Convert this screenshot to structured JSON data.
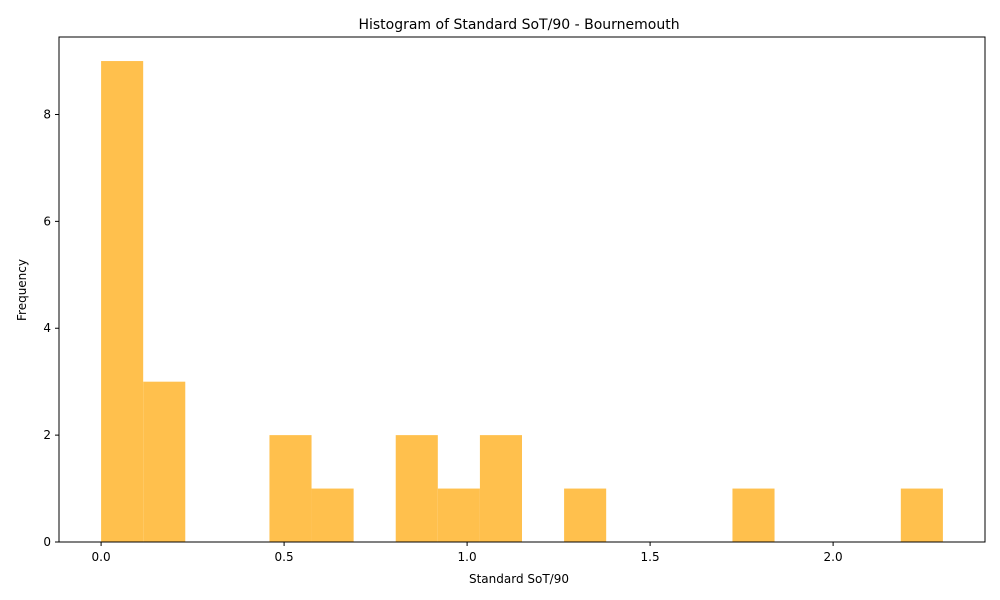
{
  "chart_data": {
    "type": "bar",
    "title": "Histogram of Standard SoT/90 - Bournemouth",
    "xlabel": "Standard SoT/90",
    "ylabel": "Frequency",
    "bar_color": "#ffc04d",
    "xlim": [
      -0.115,
      2.415
    ],
    "ylim": [
      0,
      9.45
    ],
    "xticks": [
      {
        "value": 0.0,
        "label": "0.0"
      },
      {
        "value": 0.5,
        "label": "0.5"
      },
      {
        "value": 1.0,
        "label": "1.0"
      },
      {
        "value": 1.5,
        "label": "1.5"
      },
      {
        "value": 2.0,
        "label": "2.0"
      }
    ],
    "yticks": [
      {
        "value": 0,
        "label": "0"
      },
      {
        "value": 2,
        "label": "2"
      },
      {
        "value": 4,
        "label": "4"
      },
      {
        "value": 6,
        "label": "6"
      },
      {
        "value": 8,
        "label": "8"
      }
    ],
    "bins": [
      {
        "start": 0.0,
        "end": 0.115,
        "count": 9
      },
      {
        "start": 0.115,
        "end": 0.23,
        "count": 3
      },
      {
        "start": 0.23,
        "end": 0.345,
        "count": 0
      },
      {
        "start": 0.345,
        "end": 0.46,
        "count": 0
      },
      {
        "start": 0.46,
        "end": 0.575,
        "count": 2
      },
      {
        "start": 0.575,
        "end": 0.69,
        "count": 1
      },
      {
        "start": 0.69,
        "end": 0.805,
        "count": 0
      },
      {
        "start": 0.805,
        "end": 0.92,
        "count": 2
      },
      {
        "start": 0.92,
        "end": 1.035,
        "count": 1
      },
      {
        "start": 1.035,
        "end": 1.15,
        "count": 2
      },
      {
        "start": 1.15,
        "end": 1.265,
        "count": 0
      },
      {
        "start": 1.265,
        "end": 1.38,
        "count": 1
      },
      {
        "start": 1.38,
        "end": 1.495,
        "count": 0
      },
      {
        "start": 1.495,
        "end": 1.61,
        "count": 0
      },
      {
        "start": 1.61,
        "end": 1.725,
        "count": 0
      },
      {
        "start": 1.725,
        "end": 1.84,
        "count": 1
      },
      {
        "start": 1.84,
        "end": 1.955,
        "count": 0
      },
      {
        "start": 1.955,
        "end": 2.07,
        "count": 0
      },
      {
        "start": 2.07,
        "end": 2.185,
        "count": 0
      },
      {
        "start": 2.185,
        "end": 2.3,
        "count": 1
      }
    ]
  }
}
